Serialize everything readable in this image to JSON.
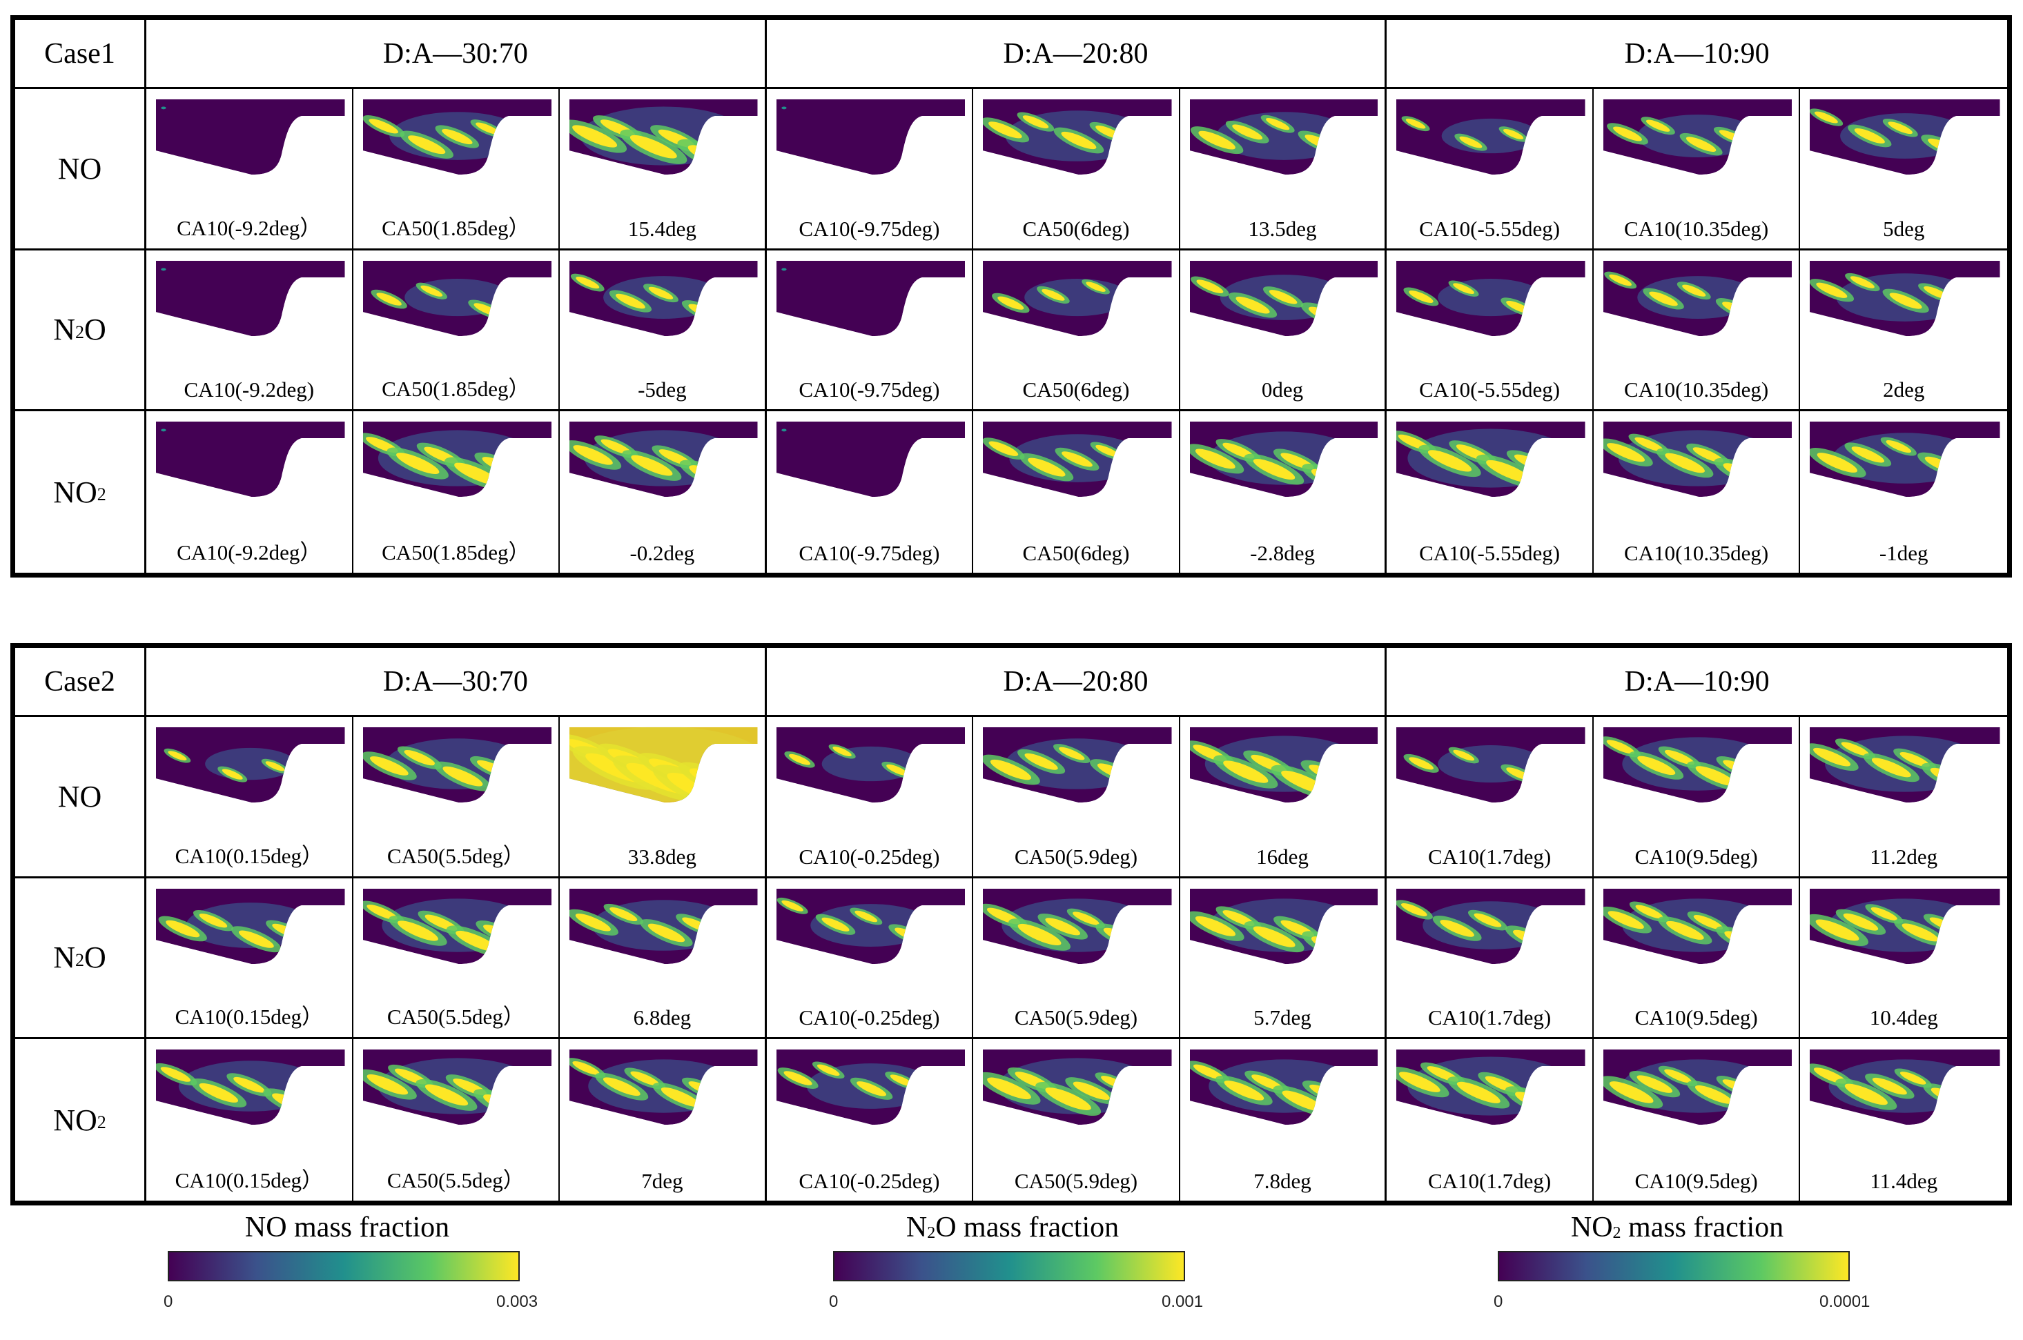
{
  "panels": [
    {
      "case_label": "Case1",
      "group_headers": [
        "D:A—30:70",
        "D:A—20:80",
        "D:A—10:90"
      ],
      "rows": [
        {
          "species": "NO",
          "species_sub": "",
          "cells": [
            {
              "caption": "CA10(-9.2deg）",
              "level": 0.02
            },
            {
              "caption": "CA50(1.85deg）",
              "level": 0.4
            },
            {
              "caption": "15.4deg",
              "level": 0.6
            },
            {
              "caption": "CA10(-9.75deg)",
              "level": 0.02
            },
            {
              "caption": "CA50(6deg)",
              "level": 0.45
            },
            {
              "caption": "13.5deg",
              "level": 0.4
            },
            {
              "caption": "CA10(-5.55deg)",
              "level": 0.15
            },
            {
              "caption": "CA10(10.35deg)",
              "level": 0.3
            },
            {
              "caption": "5deg",
              "level": 0.35
            }
          ]
        },
        {
          "species": "N",
          "species_sub": "2",
          "species_tail": "O",
          "cells": [
            {
              "caption": "CA10(-9.2deg)",
              "level": 0.0
            },
            {
              "caption": "CA50(1.85deg）",
              "level": 0.2
            },
            {
              "caption": "-5deg",
              "level": 0.3
            },
            {
              "caption": "CA10(-9.75deg)",
              "level": 0.02
            },
            {
              "caption": "CA50(6deg)",
              "level": 0.2
            },
            {
              "caption": "0deg",
              "level": 0.35
            },
            {
              "caption": "CA10(-5.55deg)",
              "level": 0.2
            },
            {
              "caption": "CA10(10.35deg)",
              "level": 0.3
            },
            {
              "caption": "2deg",
              "level": 0.4
            }
          ]
        },
        {
          "species": "NO",
          "species_sub": "2",
          "species_tail": "",
          "cells": [
            {
              "caption": "CA10(-9.2deg）",
              "level": 0.03
            },
            {
              "caption": "CA50(1.85deg）",
              "level": 0.55
            },
            {
              "caption": "-0.2deg",
              "level": 0.55
            },
            {
              "caption": "CA10(-9.75deg)",
              "level": 0.02
            },
            {
              "caption": "CA50(6deg)",
              "level": 0.4
            },
            {
              "caption": "-2.8deg",
              "level": 0.5
            },
            {
              "caption": "CA10(-5.55deg)",
              "level": 0.6
            },
            {
              "caption": "CA10(10.35deg)",
              "level": 0.55
            },
            {
              "caption": "-1deg",
              "level": 0.45
            }
          ]
        }
      ]
    },
    {
      "case_label": "Case2",
      "group_headers": [
        "D:A—30:70",
        "D:A—20:80",
        "D:A—10:90"
      ],
      "rows": [
        {
          "species": "NO",
          "species_sub": "",
          "cells": [
            {
              "caption": "CA10(0.15deg）",
              "level": 0.1
            },
            {
              "caption": "CA50(5.5deg）",
              "level": 0.45
            },
            {
              "caption": "33.8deg",
              "level": 0.9
            },
            {
              "caption": "CA10(-0.25deg)",
              "level": 0.15
            },
            {
              "caption": "CA50(5.9deg)",
              "level": 0.45
            },
            {
              "caption": "16deg",
              "level": 0.55
            },
            {
              "caption": "CA10(1.7deg)",
              "level": 0.2
            },
            {
              "caption": "CA10(9.5deg)",
              "level": 0.5
            },
            {
              "caption": "11.2deg",
              "level": 0.55
            }
          ]
        },
        {
          "species": "N",
          "species_sub": "2",
          "species_tail": "O",
          "cells": [
            {
              "caption": "CA10(0.15deg）",
              "level": 0.35
            },
            {
              "caption": "CA50(5.5deg）",
              "level": 0.5
            },
            {
              "caption": "6.8deg",
              "level": 0.45
            },
            {
              "caption": "CA10(-0.25deg)",
              "level": 0.3
            },
            {
              "caption": "CA50(5.9deg)",
              "level": 0.5
            },
            {
              "caption": "5.7deg",
              "level": 0.5
            },
            {
              "caption": "CA10(1.7deg)",
              "level": 0.4
            },
            {
              "caption": "CA10(9.5deg)",
              "level": 0.5
            },
            {
              "caption": "10.4deg",
              "level": 0.5
            }
          ]
        },
        {
          "species": "NO",
          "species_sub": "2",
          "species_tail": "",
          "cells": [
            {
              "caption": "CA10(0.15deg）",
              "level": 0.45
            },
            {
              "caption": "CA50(5.5deg）",
              "level": 0.55
            },
            {
              "caption": "7deg",
              "level": 0.5
            },
            {
              "caption": "CA10(-0.25deg)",
              "level": 0.35
            },
            {
              "caption": "CA50(5.9deg)",
              "level": 0.55
            },
            {
              "caption": "7.8deg",
              "level": 0.5
            },
            {
              "caption": "CA10(1.7deg)",
              "level": 0.6
            },
            {
              "caption": "CA10(9.5deg)",
              "level": 0.5
            },
            {
              "caption": "11.4deg",
              "level": 0.5
            }
          ]
        }
      ]
    }
  ],
  "colorbars": [
    {
      "title_pre": "NO",
      "title_sub": "",
      "title_post": " mass fraction",
      "min": "0",
      "max": "0.003"
    },
    {
      "title_pre": "N",
      "title_sub": "2",
      "title_post": "O mass fraction",
      "min": "0",
      "max": "0.001"
    },
    {
      "title_pre": "NO",
      "title_sub": "2",
      "title_post": " mass fraction",
      "min": "0",
      "max": "0.0001"
    }
  ],
  "colors": {
    "background_low": "#440154",
    "mid_blue": "#3b528b",
    "teal": "#21908d",
    "green": "#5dc963",
    "high_yellow": "#fde725"
  }
}
